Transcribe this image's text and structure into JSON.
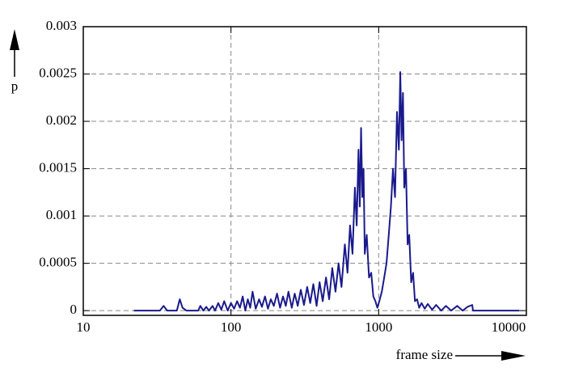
{
  "chart_data": {
    "type": "line",
    "x_label": "frame size",
    "y_label": "p",
    "x": [
      22,
      33,
      35,
      37,
      43,
      45,
      47,
      50,
      60,
      62,
      65,
      68,
      71,
      75,
      78,
      82,
      86,
      90,
      95,
      100,
      105,
      110,
      115,
      120,
      125,
      130,
      135,
      140,
      147,
      155,
      162,
      170,
      178,
      186,
      195,
      205,
      215,
      225,
      235,
      245,
      258,
      270,
      283,
      297,
      312,
      328,
      344,
      361,
      380,
      398,
      418,
      440,
      462,
      485,
      510,
      535,
      560,
      590,
      615,
      640,
      665,
      690,
      710,
      730,
      745,
      760,
      775,
      790,
      805,
      830,
      860,
      890,
      920,
      950,
      980,
      1010,
      1050,
      1090,
      1130,
      1170,
      1210,
      1250,
      1290,
      1330,
      1370,
      1400,
      1430,
      1460,
      1490,
      1530,
      1570,
      1610,
      1660,
      1710,
      1760,
      1820,
      1880,
      1950,
      2050,
      2150,
      2300,
      2450,
      2650,
      2850,
      3100,
      3400,
      3700,
      4000,
      4300,
      4350,
      9000
    ],
    "values": [
      0,
      0,
      5e-05,
      0,
      0,
      0.00012,
      3e-05,
      0,
      0,
      5e-05,
      0,
      4e-05,
      0,
      5e-05,
      0,
      8e-05,
      1e-05,
      0.0001,
      0,
      8e-05,
      2e-05,
      0.0001,
      3e-05,
      0.00015,
      0,
      0.00012,
      3e-05,
      0.0002,
      2e-05,
      0.00012,
      4e-05,
      0.00015,
      2e-05,
      0.00012,
      5e-05,
      0.00018,
      3e-05,
      0.00015,
      5e-05,
      0.0002,
      3e-05,
      0.00018,
      5e-05,
      0.00022,
      6e-05,
      0.00025,
      8e-05,
      0.00028,
      5e-05,
      0.0003,
      0.0001,
      0.00035,
      0.00012,
      0.00045,
      0.0002,
      0.0005,
      0.00025,
      0.0007,
      0.0004,
      0.0009,
      0.0006,
      0.0013,
      0.0009,
      0.0017,
      0.0011,
      0.00193,
      0.0012,
      0.0015,
      0.0006,
      0.0008,
      0.00035,
      0.0004,
      0.00015,
      0.0001,
      3e-05,
      0.0001,
      0.0002,
      0.00035,
      0.0005,
      0.0008,
      0.0011,
      0.0015,
      0.0012,
      0.0021,
      0.0017,
      0.00252,
      0.0018,
      0.0023,
      0.0013,
      0.0015,
      0.0007,
      0.0008,
      0.0003,
      0.0004,
      0.0001,
      0.00012,
      3e-05,
      8e-05,
      2e-05,
      7e-05,
      1e-05,
      6e-05,
      0,
      5e-05,
      0,
      5e-05,
      0,
      4e-05,
      6e-05,
      0,
      0
    ],
    "color": "#1a1a8c",
    "xscale": "log",
    "xlim": [
      10,
      10000
    ],
    "xticks": [
      10,
      100,
      1000,
      10000
    ],
    "ylim": [
      -5e-05,
      0.003
    ],
    "yticks": [
      0,
      0.0005,
      0.001,
      0.0015,
      0.002,
      0.0025,
      0.003
    ],
    "grid": true
  }
}
